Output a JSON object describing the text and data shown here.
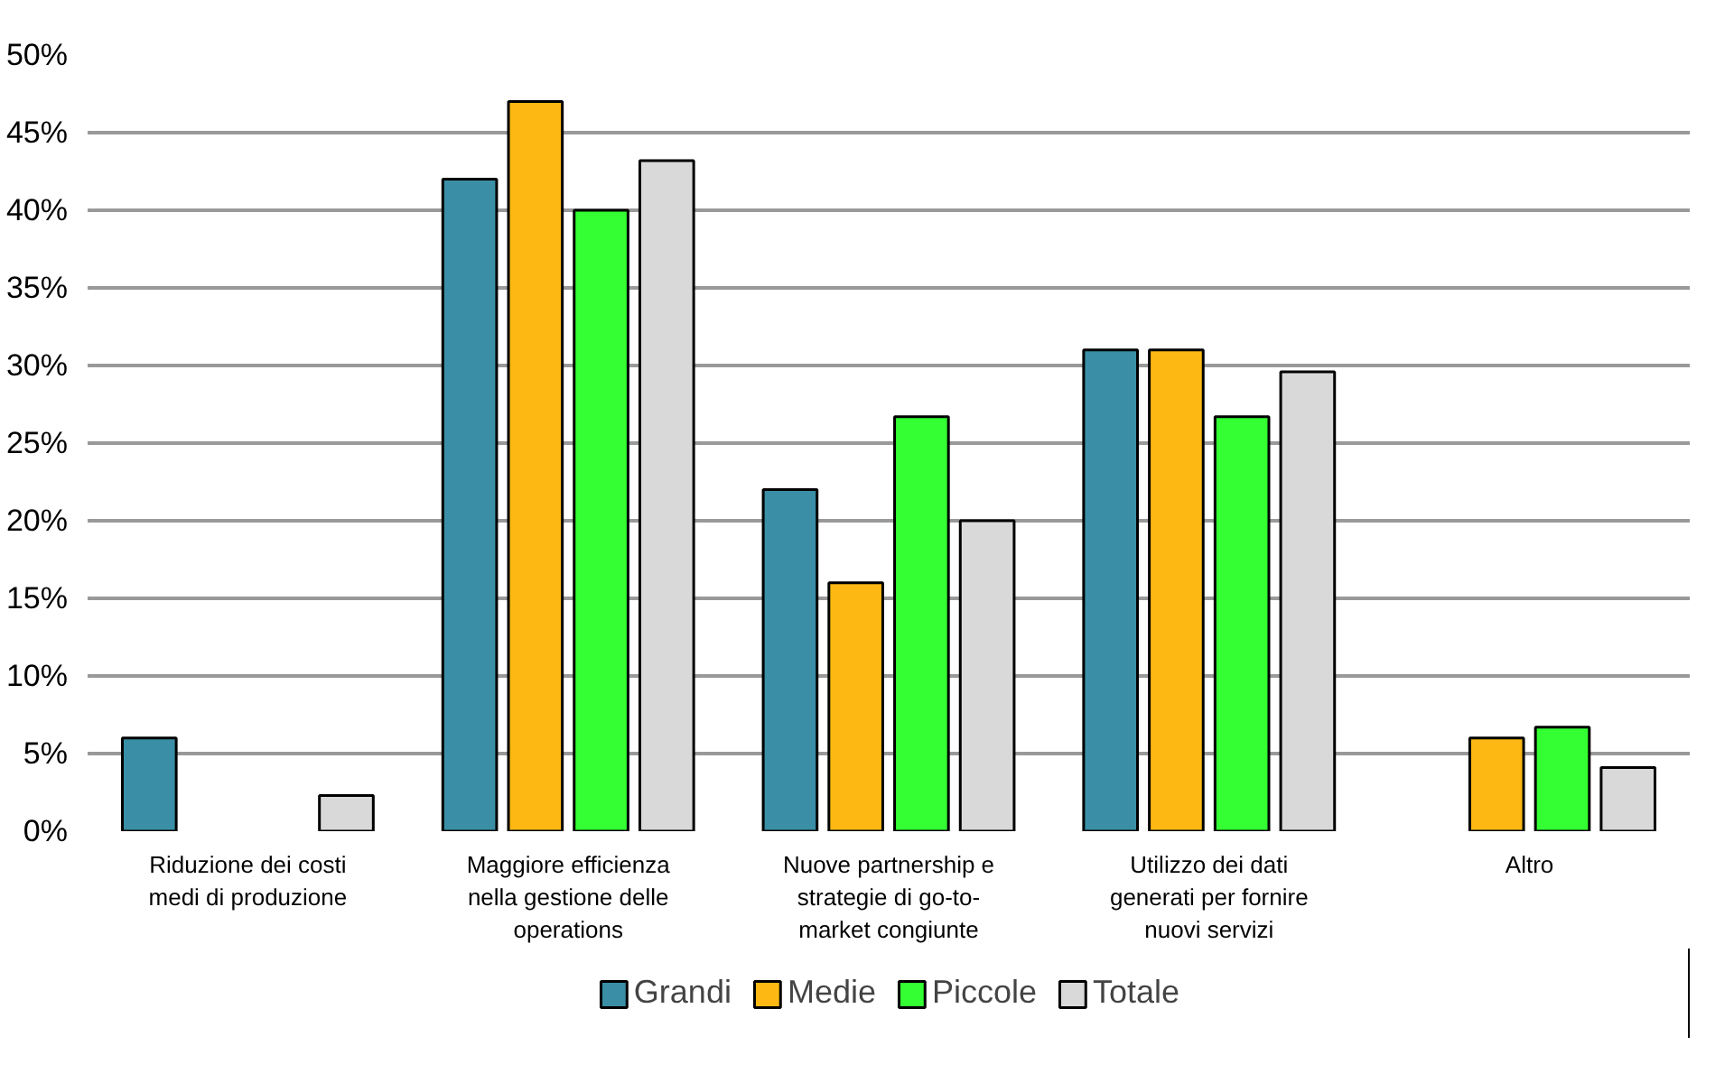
{
  "chart_data": {
    "type": "bar",
    "categories": [
      "Riduzione dei costi\nmedi di produzione",
      "Maggiore efficienza\nnella gestione delle\noperations",
      "Nuove partnership e\nstrategie di go-to-\nmarket congiunte",
      "Utilizzo dei dati\ngenerati per fornire\nnuovi servizi",
      "Altro"
    ],
    "series": [
      {
        "name": "Grandi",
        "color": "#3a8fa6",
        "values": [
          6,
          42,
          22,
          31,
          null
        ]
      },
      {
        "name": "Medie",
        "color": "#fdb813",
        "values": [
          null,
          47,
          16,
          31,
          6
        ]
      },
      {
        "name": "Piccole",
        "color": "#33ff33",
        "values": [
          null,
          40,
          26.7,
          26.7,
          6.7
        ]
      },
      {
        "name": "Totale",
        "color": "#d9d9d9",
        "values": [
          2.3,
          43.2,
          20,
          29.6,
          4.1
        ]
      }
    ],
    "ylim": [
      0,
      50
    ],
    "yticks": [
      {
        "value": 0,
        "label": "0%"
      },
      {
        "value": 5,
        "label": "5%"
      },
      {
        "value": 10,
        "label": "10%"
      },
      {
        "value": 15,
        "label": "15%"
      },
      {
        "value": 20,
        "label": "20%"
      },
      {
        "value": 25,
        "label": "25%"
      },
      {
        "value": 30,
        "label": "30%"
      },
      {
        "value": 35,
        "label": "35%"
      },
      {
        "value": 40,
        "label": "40%"
      },
      {
        "value": 45,
        "label": "45%"
      },
      {
        "value": 50,
        "label": "50%"
      }
    ],
    "grid": "y",
    "legend": "bottom"
  }
}
